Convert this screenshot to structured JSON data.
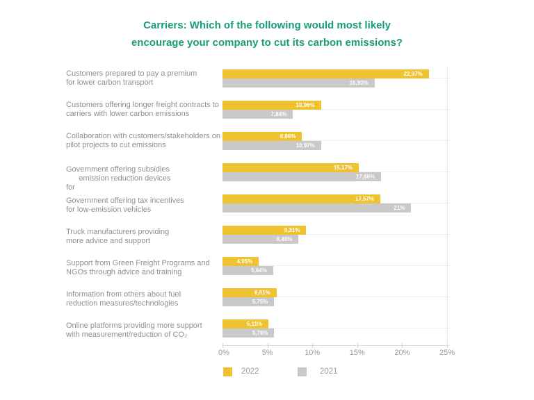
{
  "title": {
    "line1": "Carriers: Which of the following would most likely",
    "line2": "encourage your company to cut its carbon emissions?"
  },
  "colors": {
    "title": "#189c7b",
    "bar_2022": "#efc330",
    "bar_2021": "#c9c9c9",
    "value_text": "#ffffff",
    "category_text": "#8f8f8f",
    "axis_text": "#9a9a9a"
  },
  "chart_data": {
    "type": "bar",
    "orientation": "horizontal",
    "title": "Carriers: Which of the following would most likely encourage your company to cut its carbon emissions?",
    "xlabel": "",
    "ylabel": "",
    "xlim": [
      0,
      25
    ],
    "x_ticks": [
      "0%",
      "5%",
      "10%",
      "15%",
      "20%",
      "25%"
    ],
    "grid": "horizontal category lines + right boundary line",
    "legend_position": "bottom",
    "legend": [
      {
        "label": "2022",
        "color": "#efc330"
      },
      {
        "label": "2021",
        "color": "#c9c9c9"
      }
    ],
    "categories": [
      "Customers prepared to pay a premium for lower carbon transport",
      "Customers offering longer freight contracts to carriers with lower carbon emissions",
      "Collaboration with customers/stakeholders on pilot projects to cut emissions",
      "Government offering subsidies for emission reduction devices",
      "Government offering tax incentives for low-emission vehicles",
      "Truck manufacturers providing more advice and support",
      "Support from Green Freight Programs and NGOs through advice and training",
      "Information from others about fuel reduction measures/technologies",
      "Online platforms providing more support with measurement/reduction of CO₂"
    ],
    "series": [
      {
        "name": "2022",
        "values": [
          22.97,
          10.96,
          8.86,
          15.17,
          17.57,
          9.31,
          4.05,
          6.01,
          5.11
        ]
      },
      {
        "name": "2021",
        "values": [
          16.93,
          7.84,
          10.97,
          17.66,
          21,
          8.46,
          5.64,
          5.75,
          5.76
        ]
      }
    ],
    "rows": [
      {
        "label": "Customers prepared to pay a premium\nfor lower carbon transport",
        "v2022": 22.97,
        "v2021": 16.93,
        "d2022": "22,97%",
        "d2021": "16,93%"
      },
      {
        "label": "Customers offering longer freight contracts to\ncarriers with lower carbon emissions",
        "v2022": 10.96,
        "v2021": 7.84,
        "d2022": "10,96%",
        "d2021": "7,84%"
      },
      {
        "label": "Collaboration with customers/stakeholders on\npilot projects to cut emissions",
        "v2022": 8.86,
        "v2021": 10.97,
        "d2022": "8,86%",
        "d2021": "10,97%"
      },
      {
        "label": "Government offering subsidies\n      emission reduction devices\nfor",
        "v2022": 15.17,
        "v2021": 17.66,
        "d2022": "15,17%",
        "d2021": "17,66%"
      },
      {
        "label": "Government offering tax incentives\nfor low-emission vehicles",
        "v2022": 17.57,
        "v2021": 21,
        "d2022": "17,57%",
        "d2021": "21%"
      },
      {
        "label": "Truck manufacturers providing\nmore advice and support",
        "v2022": 9.31,
        "v2021": 8.46,
        "d2022": "9,31%",
        "d2021": "8,46%"
      },
      {
        "label": "Support from Green Freight Programs and\nNGOs through advice and training",
        "v2022": 4.05,
        "v2021": 5.64,
        "d2022": "4,05%",
        "d2021": "5,64%"
      },
      {
        "label": "Information from others about fuel\nreduction measures/technologies",
        "v2022": 6.01,
        "v2021": 5.75,
        "d2022": "6,01%",
        "d2021": "5,75%"
      },
      {
        "label": "Online platforms providing more support\nwith measurement/reduction of CO₂",
        "v2022": 5.11,
        "v2021": 5.76,
        "d2022": "5,11%",
        "d2021": "5,76%"
      }
    ],
    "x_tick_labels": {
      "t0": "0%",
      "t1": "5%",
      "t2": "10%",
      "t3": "15%",
      "t4": "20%",
      "t5": "25%"
    }
  }
}
